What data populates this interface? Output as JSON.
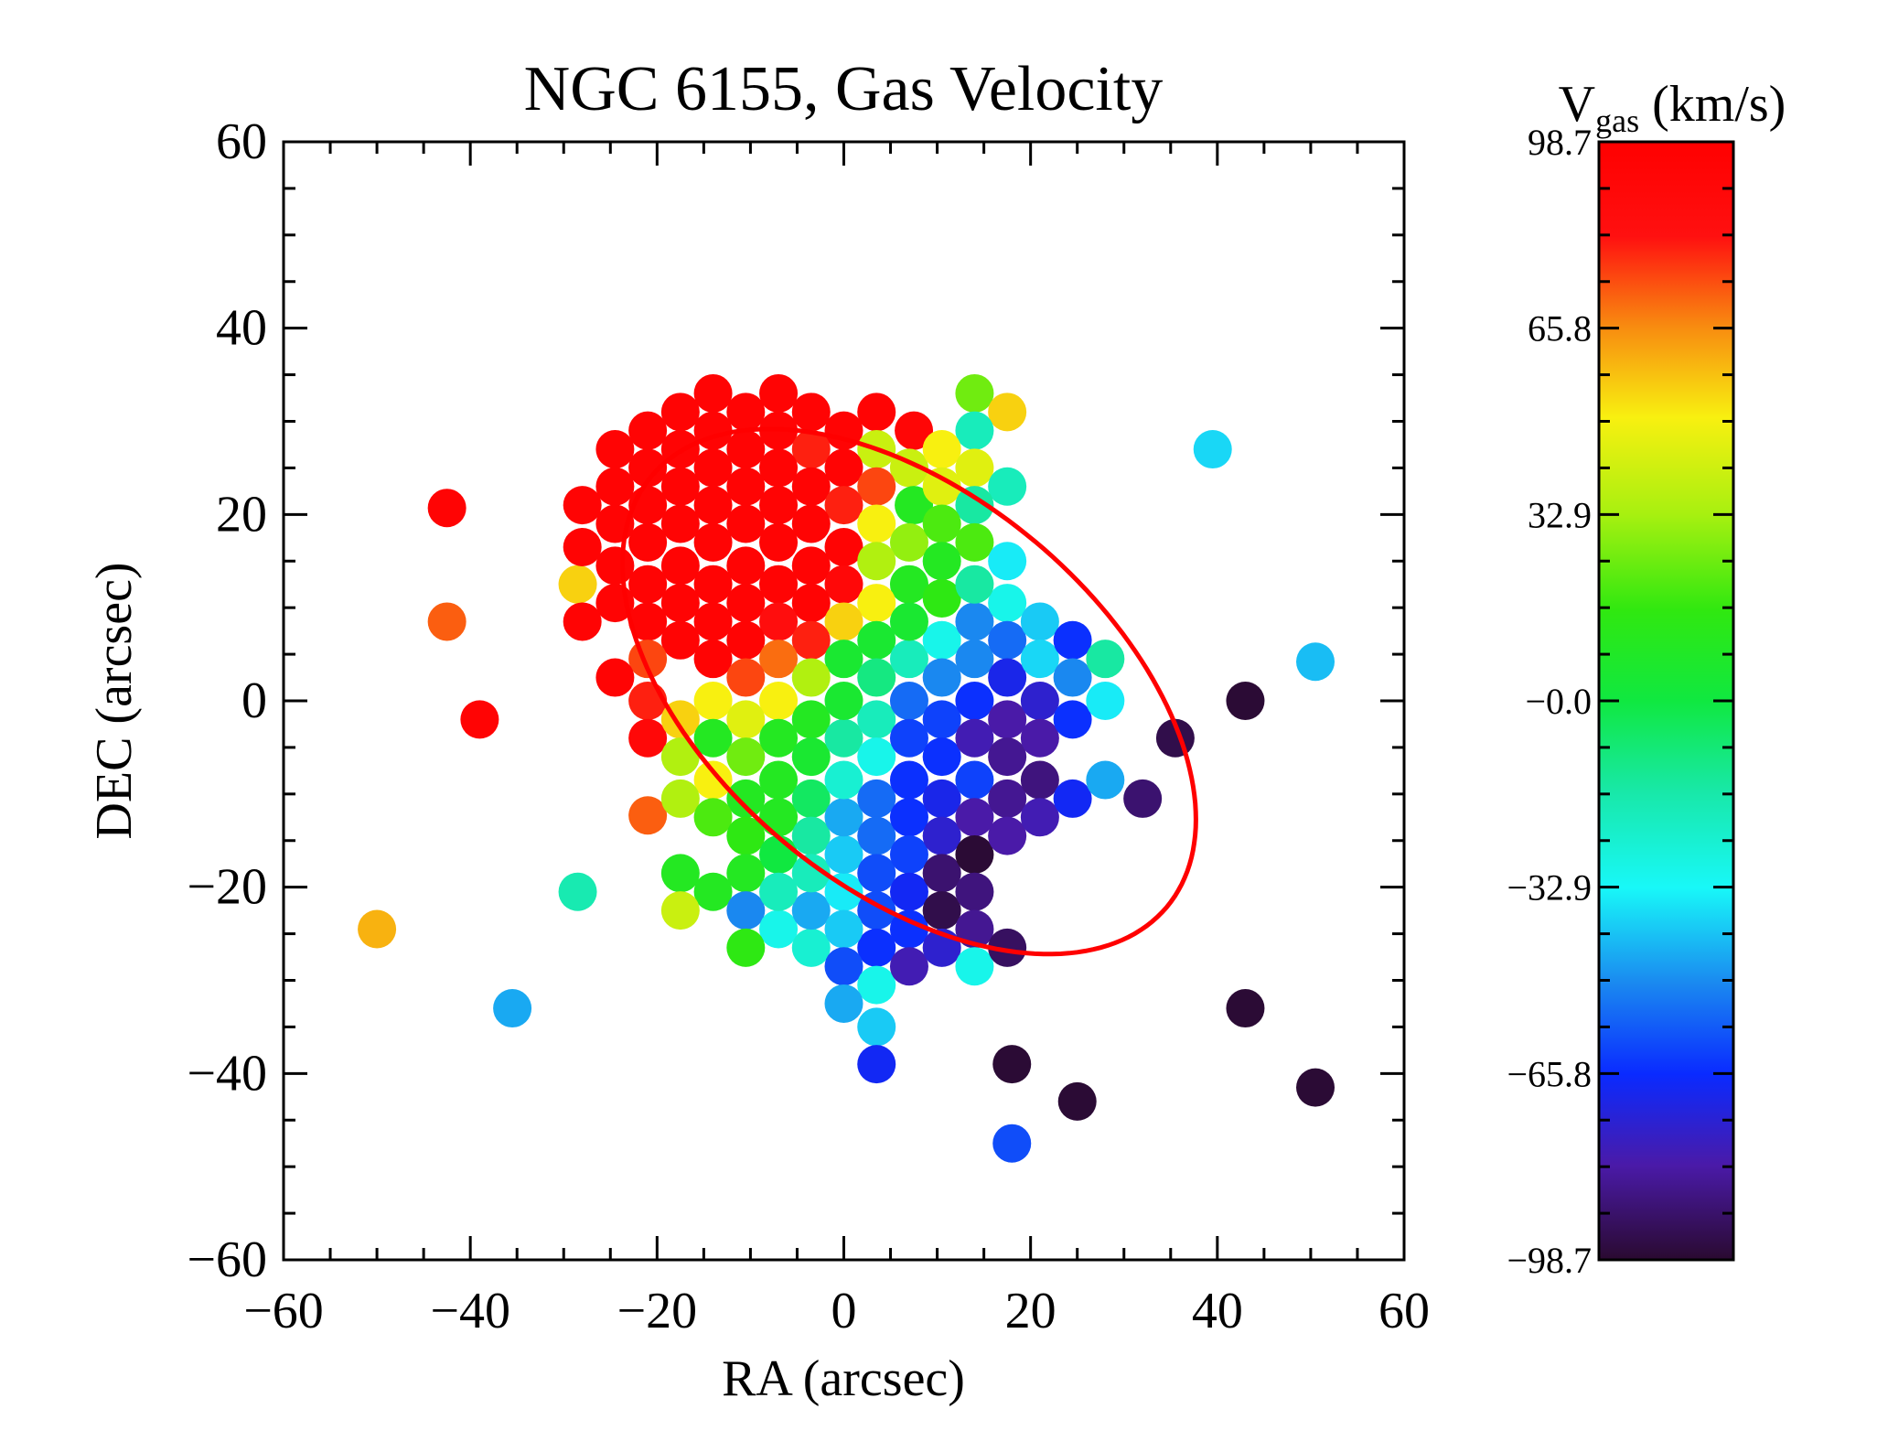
{
  "chart_data": {
    "type": "scatter",
    "title": "NGC 6155, Gas Velocity",
    "xlabel": "RA (arcsec)",
    "ylabel": "DEC (arcsec)",
    "xlim": [
      -60,
      60
    ],
    "ylim": [
      -60,
      60
    ],
    "xticks": [
      -60,
      -40,
      -20,
      0,
      20,
      40,
      60
    ],
    "yticks": [
      -60,
      -40,
      -20,
      0,
      20,
      40,
      60
    ],
    "xtick_labels": [
      "−60",
      "−40",
      "−20",
      "0",
      "20",
      "40",
      "60"
    ],
    "ytick_labels": [
      "−60",
      "−40",
      "−20",
      "0",
      "20",
      "40",
      "60"
    ],
    "grid": false,
    "colorbar": {
      "label_main": "V",
      "label_sub": "gas",
      "label_unit": " (km/s)",
      "min": -98.7,
      "max": 98.7,
      "ticks": [
        98.7,
        65.8,
        32.9,
        0.0,
        -32.9,
        -65.8,
        -98.7
      ],
      "tick_labels": [
        "98.7",
        "65.8",
        "32.9",
        "−0.0",
        "−32.9",
        "−65.8",
        "−98.7"
      ],
      "colormap_stops": [
        {
          "v": -98.7,
          "color": "#2a0a30"
        },
        {
          "v": -82,
          "color": "#4a1aa8"
        },
        {
          "v": -66,
          "color": "#0a2aff"
        },
        {
          "v": -50,
          "color": "#1a88f0"
        },
        {
          "v": -33,
          "color": "#18f8f8"
        },
        {
          "v": -16,
          "color": "#18e8a8"
        },
        {
          "v": 0,
          "color": "#10e840"
        },
        {
          "v": 16,
          "color": "#30e810"
        },
        {
          "v": 33,
          "color": "#a8f010"
        },
        {
          "v": 50,
          "color": "#f8f010"
        },
        {
          "v": 66,
          "color": "#f88c10"
        },
        {
          "v": 82,
          "color": "#ff1010"
        },
        {
          "v": 98.7,
          "color": "#ff0000"
        }
      ]
    },
    "ellipse": {
      "center": [
        7,
        1
      ],
      "semi_major": 36,
      "semi_minor": 21,
      "angle_deg": -40,
      "color": "#ff0000"
    },
    "points": [
      {
        "x": -42.5,
        "y": 20.7,
        "v": 95
      },
      {
        "x": -42.5,
        "y": 8.5,
        "v": 72
      },
      {
        "x": -39,
        "y": -2,
        "v": 95
      },
      {
        "x": -21,
        "y": -12.3,
        "v": 72
      },
      {
        "x": -50,
        "y": -24.5,
        "v": 60
      },
      {
        "x": -28.5,
        "y": -20.5,
        "v": -18
      },
      {
        "x": -35.5,
        "y": -33,
        "v": -45
      },
      {
        "x": -28.5,
        "y": 12.5,
        "v": 55
      },
      {
        "x": -14,
        "y": 33,
        "v": 95
      },
      {
        "x": -7,
        "y": 33,
        "v": 95
      },
      {
        "x": 3.5,
        "y": 31,
        "v": 95
      },
      {
        "x": 7.5,
        "y": 29,
        "v": 92
      },
      {
        "x": -17.5,
        "y": 31,
        "v": 95
      },
      {
        "x": -10.5,
        "y": 31,
        "v": 95
      },
      {
        "x": -3.5,
        "y": 31,
        "v": 95
      },
      {
        "x": -21,
        "y": 29,
        "v": 95
      },
      {
        "x": 0,
        "y": 29,
        "v": 95
      },
      {
        "x": -24.5,
        "y": 27,
        "v": 95
      },
      {
        "x": -14,
        "y": 29,
        "v": 95
      },
      {
        "x": -7,
        "y": 29,
        "v": 95
      },
      {
        "x": -17.5,
        "y": 27,
        "v": 95
      },
      {
        "x": -10.5,
        "y": 27,
        "v": 95
      },
      {
        "x": -3.5,
        "y": 27,
        "v": 80
      },
      {
        "x": 3.5,
        "y": 27,
        "v": 40
      },
      {
        "x": -21,
        "y": 25,
        "v": 95
      },
      {
        "x": -14,
        "y": 25,
        "v": 95
      },
      {
        "x": -7,
        "y": 25,
        "v": 95
      },
      {
        "x": 0,
        "y": 25,
        "v": 95
      },
      {
        "x": 7,
        "y": 25,
        "v": 40
      },
      {
        "x": -24.5,
        "y": 23,
        "v": 95
      },
      {
        "x": -17.5,
        "y": 23,
        "v": 95
      },
      {
        "x": -10.5,
        "y": 23,
        "v": 95
      },
      {
        "x": -3.5,
        "y": 23,
        "v": 95
      },
      {
        "x": 3.5,
        "y": 23,
        "v": 75
      },
      {
        "x": -28,
        "y": 21,
        "v": 95
      },
      {
        "x": -21,
        "y": 21,
        "v": 95
      },
      {
        "x": -14,
        "y": 21,
        "v": 95
      },
      {
        "x": -7,
        "y": 21,
        "v": 95
      },
      {
        "x": 0,
        "y": 21,
        "v": 80
      },
      {
        "x": 7.5,
        "y": 21,
        "v": 10
      },
      {
        "x": -24.5,
        "y": 19,
        "v": 95
      },
      {
        "x": -17.5,
        "y": 19,
        "v": 95
      },
      {
        "x": -10.5,
        "y": 19,
        "v": 95
      },
      {
        "x": -3.5,
        "y": 19,
        "v": 95
      },
      {
        "x": 3.5,
        "y": 19,
        "v": 50
      },
      {
        "x": -28,
        "y": 16.5,
        "v": 95
      },
      {
        "x": -21,
        "y": 17,
        "v": 95
      },
      {
        "x": -14,
        "y": 17,
        "v": 95
      },
      {
        "x": -7,
        "y": 17,
        "v": 95
      },
      {
        "x": 0,
        "y": 16.5,
        "v": 95
      },
      {
        "x": 7,
        "y": 17,
        "v": 30
      },
      {
        "x": -24.5,
        "y": 14.5,
        "v": 95
      },
      {
        "x": -17.5,
        "y": 14.5,
        "v": 95
      },
      {
        "x": -10.5,
        "y": 14.5,
        "v": 95
      },
      {
        "x": -3.5,
        "y": 14.5,
        "v": 95
      },
      {
        "x": 3.5,
        "y": 15,
        "v": 35
      },
      {
        "x": -21,
        "y": 12.5,
        "v": 95
      },
      {
        "x": -14,
        "y": 12.5,
        "v": 95
      },
      {
        "x": -7,
        "y": 12.5,
        "v": 95
      },
      {
        "x": 0,
        "y": 12.5,
        "v": 90
      },
      {
        "x": 7,
        "y": 12.5,
        "v": 10
      },
      {
        "x": -24.5,
        "y": 10.5,
        "v": 95
      },
      {
        "x": -17.5,
        "y": 10.5,
        "v": 95
      },
      {
        "x": -10.5,
        "y": 10.5,
        "v": 95
      },
      {
        "x": -3.5,
        "y": 10.5,
        "v": 95
      },
      {
        "x": 3.5,
        "y": 10.5,
        "v": 50
      },
      {
        "x": -28,
        "y": 8.5,
        "v": 95
      },
      {
        "x": -21,
        "y": 8.5,
        "v": 95
      },
      {
        "x": -14,
        "y": 8.5,
        "v": 95
      },
      {
        "x": -7,
        "y": 8.5,
        "v": 85
      },
      {
        "x": 0,
        "y": 8.5,
        "v": 55
      },
      {
        "x": -17.5,
        "y": 6.5,
        "v": 95
      },
      {
        "x": -10.5,
        "y": 6.5,
        "v": 95
      },
      {
        "x": -3.5,
        "y": 6.5,
        "v": 80
      },
      {
        "x": 3.5,
        "y": 6.5,
        "v": 5
      },
      {
        "x": -21,
        "y": 4.5,
        "v": 75
      },
      {
        "x": -14,
        "y": 4.5,
        "v": 95
      },
      {
        "x": -7,
        "y": 4.5,
        "v": 70
      },
      {
        "x": 0,
        "y": 4.5,
        "v": 5
      },
      {
        "x": -24.5,
        "y": 2.5,
        "v": 95
      },
      {
        "x": -10.5,
        "y": 2.5,
        "v": 75
      },
      {
        "x": -3.5,
        "y": 2.5,
        "v": 35
      },
      {
        "x": -21,
        "y": 0,
        "v": 80
      },
      {
        "x": -14,
        "y": 0,
        "v": 50
      },
      {
        "x": -7,
        "y": 0,
        "v": 50
      },
      {
        "x": -21,
        "y": -4,
        "v": 90
      },
      {
        "x": -17.5,
        "y": -2,
        "v": 55
      },
      {
        "x": -14,
        "y": -4,
        "v": 10
      },
      {
        "x": -10.5,
        "y": -2,
        "v": 45
      },
      {
        "x": -3.5,
        "y": -2,
        "v": 10
      },
      {
        "x": -17.5,
        "y": -6,
        "v": 35
      },
      {
        "x": -10.5,
        "y": -6,
        "v": 25
      },
      {
        "x": -7,
        "y": -4,
        "v": 10
      },
      {
        "x": -14,
        "y": -8.5,
        "v": 50
      },
      {
        "x": -7,
        "y": -8.5,
        "v": 10
      },
      {
        "x": -17.5,
        "y": -10.5,
        "v": 35
      },
      {
        "x": -10.5,
        "y": -10.5,
        "v": 10
      },
      {
        "x": -3.5,
        "y": -6,
        "v": 5
      },
      {
        "x": -14,
        "y": -12.5,
        "v": 20
      },
      {
        "x": -7,
        "y": -12.5,
        "v": 10
      },
      {
        "x": -10.5,
        "y": -14.5,
        "v": 15
      },
      {
        "x": -3.5,
        "y": -10.5,
        "v": -5
      },
      {
        "x": -17.5,
        "y": -18.5,
        "v": 10
      },
      {
        "x": -14,
        "y": -20.5,
        "v": 10
      },
      {
        "x": -17.5,
        "y": -22.5,
        "v": 40
      },
      {
        "x": -10.5,
        "y": -18.5,
        "v": 10
      },
      {
        "x": -7,
        "y": -16.5,
        "v": 0
      },
      {
        "x": -3.5,
        "y": -14.5,
        "v": -15
      },
      {
        "x": -10.5,
        "y": -22.5,
        "v": -50
      },
      {
        "x": -7,
        "y": -24.5,
        "v": -30
      },
      {
        "x": -10.5,
        "y": -26.5,
        "v": 15
      },
      {
        "x": -3.5,
        "y": -26.5,
        "v": -25
      },
      {
        "x": -3.5,
        "y": -22.5,
        "v": -45
      },
      {
        "x": -7,
        "y": -20.5,
        "v": -20
      },
      {
        "x": -3.5,
        "y": -18.5,
        "v": -20
      },
      {
        "x": 0,
        "y": -20.5,
        "v": -35
      },
      {
        "x": 0,
        "y": -16.5,
        "v": -40
      },
      {
        "x": 0,
        "y": -12.5,
        "v": -45
      },
      {
        "x": 0,
        "y": -8.5,
        "v": -25
      },
      {
        "x": 0,
        "y": -4,
        "v": -15
      },
      {
        "x": 0,
        "y": 0,
        "v": 5
      },
      {
        "x": 3.5,
        "y": -2,
        "v": -20
      },
      {
        "x": 3.5,
        "y": -6,
        "v": -30
      },
      {
        "x": 3.5,
        "y": -10.5,
        "v": -55
      },
      {
        "x": 3.5,
        "y": -14.5,
        "v": -55
      },
      {
        "x": 3.5,
        "y": -18.5,
        "v": -60
      },
      {
        "x": 3.5,
        "y": -22.5,
        "v": -60
      },
      {
        "x": 3.5,
        "y": -26.5,
        "v": -65
      },
      {
        "x": 0,
        "y": -24.5,
        "v": -40
      },
      {
        "x": 0,
        "y": -28.5,
        "v": -60
      },
      {
        "x": 3.5,
        "y": -30.5,
        "v": -30
      },
      {
        "x": 0,
        "y": -32.5,
        "v": -45
      },
      {
        "x": 3.5,
        "y": -35,
        "v": -40
      },
      {
        "x": 3.5,
        "y": -39,
        "v": -68
      },
      {
        "x": 3.5,
        "y": 2.5,
        "v": -10
      },
      {
        "x": 7,
        "y": 4.5,
        "v": -20
      },
      {
        "x": 7,
        "y": 0,
        "v": -55
      },
      {
        "x": 7,
        "y": -4,
        "v": -62
      },
      {
        "x": 7,
        "y": -8.5,
        "v": -65
      },
      {
        "x": 7,
        "y": -12.5,
        "v": -65
      },
      {
        "x": 7,
        "y": -16.5,
        "v": -62
      },
      {
        "x": 7,
        "y": -20.5,
        "v": -68
      },
      {
        "x": 7,
        "y": -24.5,
        "v": -65
      },
      {
        "x": 7,
        "y": -28.5,
        "v": -80
      },
      {
        "x": 10.5,
        "y": 6.5,
        "v": -30
      },
      {
        "x": 10.5,
        "y": 2.5,
        "v": -50
      },
      {
        "x": 10.5,
        "y": -2,
        "v": -62
      },
      {
        "x": 10.5,
        "y": -6,
        "v": -65
      },
      {
        "x": 10.5,
        "y": -10.5,
        "v": -70
      },
      {
        "x": 10.5,
        "y": -14.5,
        "v": -75
      },
      {
        "x": 10.5,
        "y": -18.5,
        "v": -90
      },
      {
        "x": 10.5,
        "y": -22.5,
        "v": -95
      },
      {
        "x": 10.5,
        "y": -26.5,
        "v": -75
      },
      {
        "x": 14,
        "y": 8.5,
        "v": -50
      },
      {
        "x": 14,
        "y": 4.5,
        "v": -50
      },
      {
        "x": 14,
        "y": 0,
        "v": -65
      },
      {
        "x": 14,
        "y": -4,
        "v": -80
      },
      {
        "x": 14,
        "y": -8.5,
        "v": -62
      },
      {
        "x": 14,
        "y": -12.5,
        "v": -82
      },
      {
        "x": 14,
        "y": -16.5,
        "v": -98
      },
      {
        "x": 14,
        "y": -20.5,
        "v": -88
      },
      {
        "x": 14,
        "y": -24.5,
        "v": -85
      },
      {
        "x": 14,
        "y": -28.5,
        "v": -30
      },
      {
        "x": 17.5,
        "y": 10.5,
        "v": -30
      },
      {
        "x": 17.5,
        "y": 6.5,
        "v": -55
      },
      {
        "x": 17.5,
        "y": 2.5,
        "v": -70
      },
      {
        "x": 17.5,
        "y": -2,
        "v": -82
      },
      {
        "x": 17.5,
        "y": -6,
        "v": -85
      },
      {
        "x": 17.5,
        "y": -10.5,
        "v": -85
      },
      {
        "x": 17.5,
        "y": -14.5,
        "v": -82
      },
      {
        "x": 17.5,
        "y": -26.5,
        "v": -92
      },
      {
        "x": 21,
        "y": 8.5,
        "v": -40
      },
      {
        "x": 21,
        "y": 4.5,
        "v": -38
      },
      {
        "x": 21,
        "y": 0,
        "v": -75
      },
      {
        "x": 21,
        "y": -4,
        "v": -82
      },
      {
        "x": 21,
        "y": -8.5,
        "v": -88
      },
      {
        "x": 21,
        "y": -12.5,
        "v": -80
      },
      {
        "x": 24.5,
        "y": 6.5,
        "v": -65
      },
      {
        "x": 24.5,
        "y": 2.5,
        "v": -50
      },
      {
        "x": 24.5,
        "y": -2,
        "v": -65
      },
      {
        "x": 24.5,
        "y": -10.5,
        "v": -68
      },
      {
        "x": 28,
        "y": 4.5,
        "v": -15
      },
      {
        "x": 28,
        "y": 0,
        "v": -35
      },
      {
        "x": 28,
        "y": -8.5,
        "v": -45
      },
      {
        "x": 32,
        "y": -10.5,
        "v": -90
      },
      {
        "x": 35.5,
        "y": -4,
        "v": -95
      },
      {
        "x": 14,
        "y": 33,
        "v": 25
      },
      {
        "x": 17.5,
        "y": 31,
        "v": 55
      },
      {
        "x": 14,
        "y": 29,
        "v": -20
      },
      {
        "x": 10.5,
        "y": 27,
        "v": 50
      },
      {
        "x": 14,
        "y": 25,
        "v": 45
      },
      {
        "x": 10.5,
        "y": 23,
        "v": 45
      },
      {
        "x": 17.5,
        "y": 23,
        "v": -20
      },
      {
        "x": 14,
        "y": 21,
        "v": -15
      },
      {
        "x": 10.5,
        "y": 19,
        "v": 20
      },
      {
        "x": 14,
        "y": 17,
        "v": 20
      },
      {
        "x": 10.5,
        "y": 15,
        "v": 10
      },
      {
        "x": 17.5,
        "y": 15,
        "v": -35
      },
      {
        "x": 10.5,
        "y": 11,
        "v": 15
      },
      {
        "x": 14,
        "y": 12.5,
        "v": -15
      },
      {
        "x": 7,
        "y": 8.5,
        "v": 5
      },
      {
        "x": 39.5,
        "y": 27,
        "v": -38
      },
      {
        "x": 43,
        "y": 0,
        "v": -98
      },
      {
        "x": 50.5,
        "y": 4.2,
        "v": -42
      },
      {
        "x": 43,
        "y": -33,
        "v": -98
      },
      {
        "x": 50.5,
        "y": -41.5,
        "v": -98
      },
      {
        "x": 18,
        "y": -39,
        "v": -98
      },
      {
        "x": 25,
        "y": -43,
        "v": -98
      },
      {
        "x": 18,
        "y": -47.5,
        "v": -60
      }
    ]
  }
}
